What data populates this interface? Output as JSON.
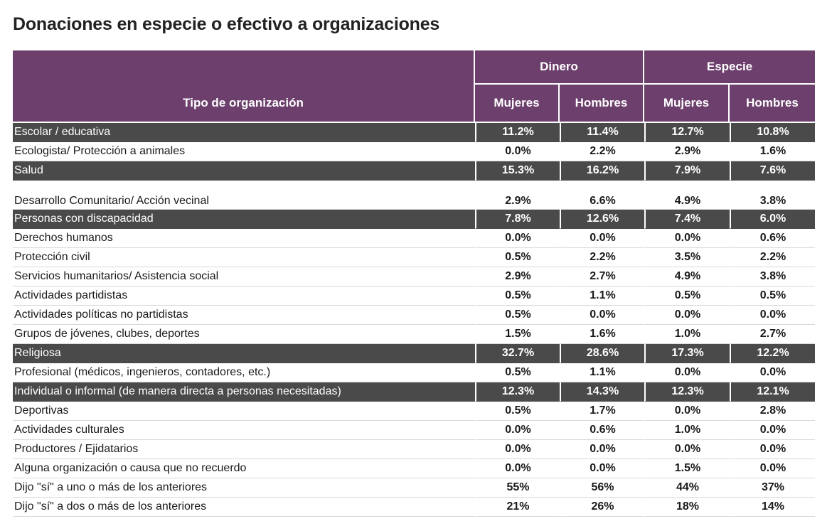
{
  "title": "Donaciones en especie o efectivo a organizaciones",
  "table": {
    "header_type": "Tipo de organización",
    "group_dinero": "Dinero",
    "group_especie": "Especie",
    "col_mujeres": "Mujeres",
    "col_hombres": "Hombres",
    "rows": [
      {
        "label": "Escolar / educativa",
        "dm": "11.2%",
        "dh": "11.4%",
        "em": "12.7%",
        "eh": "10.8%",
        "highlight": true
      },
      {
        "label": "Ecologista/ Protección a animales",
        "dm": "0.0%",
        "dh": "2.2%",
        "em": "2.9%",
        "eh": "1.6%",
        "highlight": false
      },
      {
        "label": "Salud",
        "dm": "15.3%",
        "dh": "16.2%",
        "em": "7.9%",
        "eh": "7.6%",
        "highlight": true
      },
      {
        "label": "Desarrollo Comunitario/ Acción vecinal",
        "dm": "2.9%",
        "dh": "6.6%",
        "em": "4.9%",
        "eh": "3.8%",
        "highlight": false
      },
      {
        "label": "Personas con discapacidad",
        "dm": "7.8%",
        "dh": "12.6%",
        "em": "7.4%",
        "eh": "6.0%",
        "highlight": true
      },
      {
        "label": "Derechos humanos",
        "dm": "0.0%",
        "dh": "0.0%",
        "em": "0.0%",
        "eh": "0.6%",
        "highlight": false
      },
      {
        "label": "Protección civil",
        "dm": "0.5%",
        "dh": "2.2%",
        "em": "3.5%",
        "eh": "2.2%",
        "highlight": false
      },
      {
        "label": "Servicios humanitarios/ Asistencia social",
        "dm": "2.9%",
        "dh": "2.7%",
        "em": "4.9%",
        "eh": "3.8%",
        "highlight": false
      },
      {
        "label": "Actividades partidistas",
        "dm": "0.5%",
        "dh": "1.1%",
        "em": "0.5%",
        "eh": "0.5%",
        "highlight": false
      },
      {
        "label": "Actividades políticas no partidistas",
        "dm": "0.5%",
        "dh": "0.0%",
        "em": "0.0%",
        "eh": "0.0%",
        "highlight": false
      },
      {
        "label": "Grupos de jóvenes, clubes, deportes",
        "dm": "1.5%",
        "dh": "1.6%",
        "em": "1.0%",
        "eh": "2.7%",
        "highlight": false
      },
      {
        "label": "Religiosa",
        "dm": "32.7%",
        "dh": "28.6%",
        "em": "17.3%",
        "eh": "12.2%",
        "highlight": true
      },
      {
        "label": "Profesional (médicos, ingenieros, contadores, etc.)",
        "dm": "0.5%",
        "dh": "1.1%",
        "em": "0.0%",
        "eh": "0.0%",
        "highlight": false
      },
      {
        "label": "Individual o informal (de manera directa a personas necesitadas)",
        "dm": "12.3%",
        "dh": "14.3%",
        "em": "12.3%",
        "eh": "12.1%",
        "highlight": true
      },
      {
        "label": "Deportivas",
        "dm": "0.5%",
        "dh": "1.7%",
        "em": "0.0%",
        "eh": "2.8%",
        "highlight": false
      },
      {
        "label": "Actividades culturales",
        "dm": "0.0%",
        "dh": "0.6%",
        "em": "1.0%",
        "eh": "0.0%",
        "highlight": false
      },
      {
        "label": "Productores / Ejidatarios",
        "dm": "0.0%",
        "dh": "0.0%",
        "em": "0.0%",
        "eh": "0.0%",
        "highlight": false
      },
      {
        "label": "Alguna organización o causa que no recuerdo",
        "dm": "0.0%",
        "dh": "0.0%",
        "em": "1.5%",
        "eh": "0.0%",
        "highlight": false
      },
      {
        "label": "Dijo \"sí\" a uno o más de los anteriores",
        "dm": "55%",
        "dh": "56%",
        "em": "44%",
        "eh": "37%",
        "highlight": false
      },
      {
        "label": "Dijo \"sí\" a dos o más de los anteriores",
        "dm": "21%",
        "dh": "26%",
        "em": "18%",
        "eh": "14%",
        "highlight": false
      }
    ]
  }
}
